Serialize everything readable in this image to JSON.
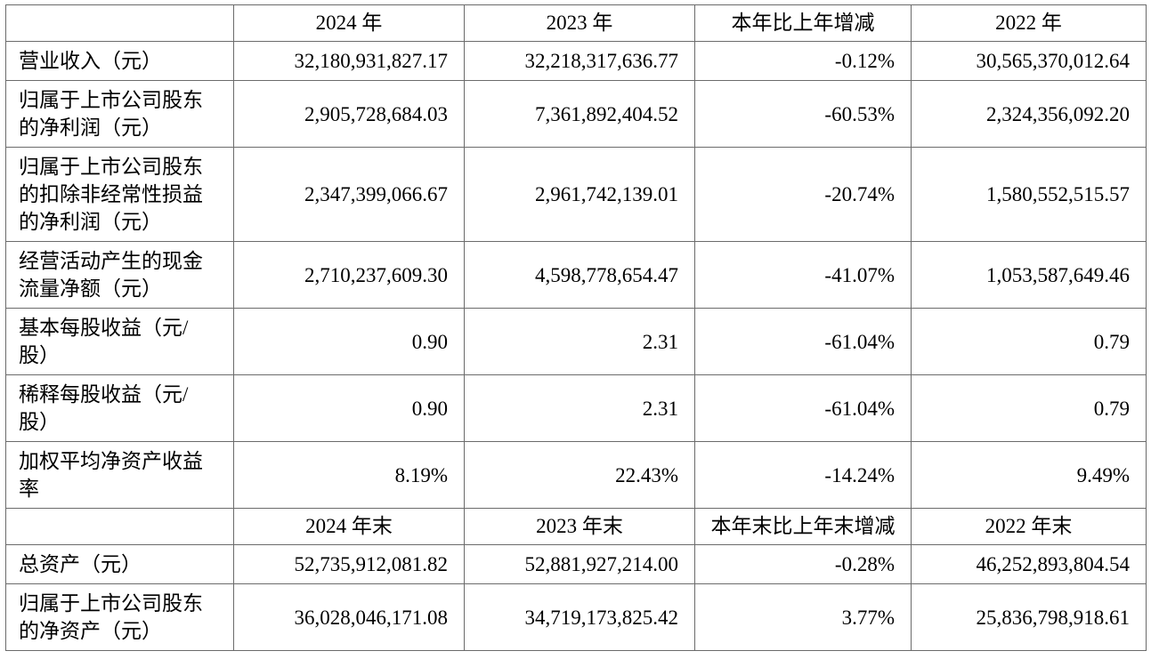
{
  "table": {
    "sections": [
      {
        "header": [
          "",
          "2024 年",
          "2023 年",
          "本年比上年增减",
          "2022 年"
        ],
        "rows": [
          {
            "label": "营业收入（元）",
            "values": [
              "32,180,931,827.17",
              "32,218,317,636.77",
              "-0.12%",
              "30,565,370,012.64"
            ]
          },
          {
            "label": "归属于上市公司股东的净利润（元）",
            "values": [
              "2,905,728,684.03",
              "7,361,892,404.52",
              "-60.53%",
              "2,324,356,092.20"
            ]
          },
          {
            "label": "归属于上市公司股东的扣除非经常性损益的净利润（元）",
            "values": [
              "2,347,399,066.67",
              "2,961,742,139.01",
              "-20.74%",
              "1,580,552,515.57"
            ]
          },
          {
            "label": "经营活动产生的现金流量净额（元）",
            "values": [
              "2,710,237,609.30",
              "4,598,778,654.47",
              "-41.07%",
              "1,053,587,649.46"
            ]
          },
          {
            "label": "基本每股收益（元/股）",
            "values": [
              "0.90",
              "2.31",
              "-61.04%",
              "0.79"
            ]
          },
          {
            "label": "稀释每股收益（元/股）",
            "values": [
              "0.90",
              "2.31",
              "-61.04%",
              "0.79"
            ]
          },
          {
            "label": "加权平均净资产收益率",
            "values": [
              "8.19%",
              "22.43%",
              "-14.24%",
              "9.49%"
            ]
          }
        ]
      },
      {
        "header": [
          "",
          "2024 年末",
          "2023 年末",
          "本年末比上年末增减",
          "2022 年末"
        ],
        "rows": [
          {
            "label": "总资产（元）",
            "values": [
              "52,735,912,081.82",
              "52,881,927,214.00",
              "-0.28%",
              "46,252,893,804.54"
            ]
          },
          {
            "label": "归属于上市公司股东的净资产（元）",
            "values": [
              "36,028,046,171.08",
              "34,719,173,825.42",
              "3.77%",
              "25,836,798,918.61"
            ]
          }
        ]
      }
    ]
  }
}
